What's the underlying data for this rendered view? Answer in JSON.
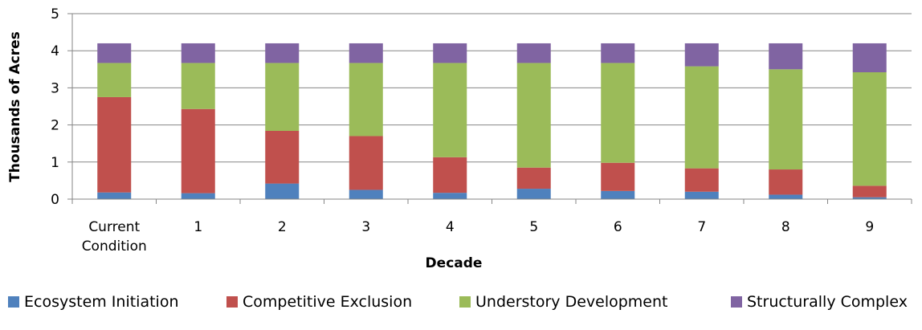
{
  "chart_data": {
    "type": "bar",
    "stacked": true,
    "title": "",
    "xlabel": "Decade",
    "ylabel": "Thousands of Acres",
    "ylim": [
      0,
      5
    ],
    "yticks": [
      "0",
      "1",
      "2",
      "3",
      "4",
      "5"
    ],
    "grid": true,
    "legend_position": "bottom",
    "categories": [
      [
        "Current",
        "Condition"
      ],
      [
        "1"
      ],
      [
        "2"
      ],
      [
        "3"
      ],
      [
        "4"
      ],
      [
        "5"
      ],
      [
        "6"
      ],
      [
        "7"
      ],
      [
        "8"
      ],
      [
        "9"
      ]
    ],
    "series": [
      {
        "name": "Ecosystem Initiation",
        "color": "#4F81BD",
        "values": [
          0.18,
          0.16,
          0.42,
          0.25,
          0.17,
          0.28,
          0.22,
          0.2,
          0.12,
          0.05
        ]
      },
      {
        "name": "Competitive Exclusion",
        "color": "#C0504D",
        "values": [
          2.57,
          2.27,
          1.42,
          1.45,
          0.96,
          0.57,
          0.76,
          0.63,
          0.68,
          0.31
        ]
      },
      {
        "name": "Understory Development",
        "color": "#9BBB59",
        "values": [
          0.92,
          1.24,
          1.83,
          1.97,
          2.54,
          2.82,
          2.69,
          2.75,
          2.7,
          3.06
        ]
      },
      {
        "name": "Structurally Complex",
        "color": "#8064A2",
        "values": [
          0.53,
          0.53,
          0.53,
          0.53,
          0.53,
          0.53,
          0.53,
          0.62,
          0.7,
          0.78
        ]
      }
    ]
  }
}
